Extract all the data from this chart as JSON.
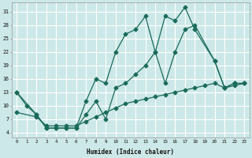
{
  "xlabel": "Humidex (Indice chaleur)",
  "bg_color": "#cde8e8",
  "grid_color": "#ffffff",
  "line_color": "#1a6b5a",
  "xlim": [
    -0.5,
    23.5
  ],
  "ylim": [
    3,
    33
  ],
  "xticks": [
    0,
    1,
    2,
    3,
    4,
    5,
    6,
    7,
    8,
    9,
    10,
    11,
    12,
    13,
    14,
    15,
    16,
    17,
    18,
    19,
    20,
    21,
    22,
    23
  ],
  "yticks": [
    4,
    7,
    10,
    13,
    16,
    19,
    22,
    25,
    28,
    31
  ],
  "line1_x": [
    0,
    1,
    2,
    3,
    4,
    5,
    6,
    7,
    8,
    9,
    10,
    11,
    12,
    13,
    14,
    15,
    16,
    17,
    18,
    20,
    21,
    22,
    23
  ],
  "line1_y": [
    13,
    10,
    8,
    5,
    5,
    5,
    5,
    11,
    16,
    15,
    22,
    26,
    27,
    30,
    22,
    30,
    29,
    32,
    27,
    20,
    14,
    15,
    15
  ],
  "line2_x": [
    0,
    2,
    3,
    4,
    5,
    6,
    7,
    8,
    9,
    10,
    11,
    12,
    13,
    14,
    15,
    16,
    17,
    18,
    20,
    21,
    22,
    23
  ],
  "line2_y": [
    13,
    8,
    5,
    5,
    5,
    5,
    8,
    11,
    7,
    14,
    15,
    17,
    19,
    22,
    15,
    22,
    27,
    28,
    20,
    14,
    15,
    15
  ],
  "line3_x": [
    0,
    2,
    3,
    4,
    5,
    6,
    7,
    8,
    9,
    10,
    11,
    12,
    13,
    14,
    15,
    16,
    17,
    18,
    19,
    20,
    21,
    22,
    23
  ],
  "line3_y": [
    8.5,
    7.5,
    5.5,
    5.5,
    5.5,
    5.5,
    6.5,
    7.5,
    8.5,
    9.5,
    10.5,
    11.0,
    11.5,
    12.0,
    12.5,
    13.0,
    13.5,
    14.0,
    14.5,
    15.0,
    14.0,
    14.5,
    15.0
  ]
}
